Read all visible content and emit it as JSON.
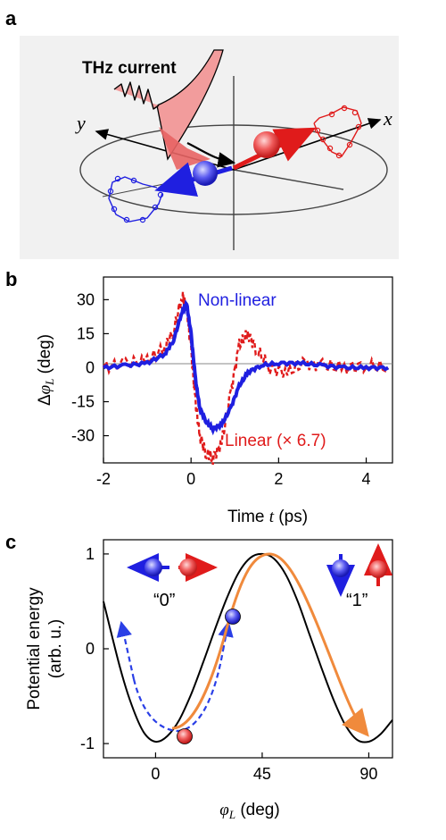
{
  "panel_a": {
    "label": "a",
    "title": "THz current",
    "axis_x": "x",
    "axis_y": "y"
  },
  "panel_b": {
    "label": "b",
    "series_nonlinear": "Non-linear",
    "series_linear": "Linear (× 6.7)",
    "ylabel_prefix": "Δ",
    "ylabel_var": "φ",
    "ylabel_sub": "L",
    "ylabel_unit": " (deg)",
    "xlabel_prefix": "Time ",
    "xlabel_var": "t",
    "xlabel_unit": " (ps)",
    "colors": {
      "nonlinear": "#1f1fe0",
      "linear": "#e01b1b"
    }
  },
  "panel_c": {
    "label": "c",
    "ylabel_line1": "Potential energy",
    "ylabel_line2": "(arb. u.)",
    "xlabel_var": "φ",
    "xlabel_sub": "L",
    "xlabel_unit": " (deg)",
    "state0": "“0”",
    "state1": "“1”",
    "colors": {
      "curve": "#000000",
      "path_blue": "#2a3fe6",
      "path_orange": "#f08a3c"
    }
  },
  "chart_data": [
    {
      "type": "line",
      "panel": "b",
      "xlabel": "Time t (ps)",
      "ylabel": "Δφ_L (deg)",
      "xlim": [
        -2,
        4.6
      ],
      "ylim": [
        -42,
        40
      ],
      "xticks": [
        "-2",
        "0",
        "2",
        "4"
      ],
      "yticks": [
        "30",
        "15",
        "0",
        "-15",
        "-30"
      ],
      "series": [
        {
          "name": "Non-linear",
          "x": [
            -2,
            -1.5,
            -1,
            -0.6,
            -0.4,
            -0.2,
            -0.1,
            0,
            0.1,
            0.2,
            0.35,
            0.5,
            0.7,
            0.9,
            1.1,
            1.3,
            1.6,
            2,
            2.5,
            3,
            3.5,
            4,
            4.5
          ],
          "y": [
            0,
            1,
            2,
            6,
            12,
            25,
            28,
            15,
            -5,
            -18,
            -24,
            -27,
            -25,
            -18,
            -8,
            -2,
            1,
            2,
            2,
            1,
            0,
            0,
            0
          ]
        },
        {
          "name": "Linear (× 6.7)",
          "x": [
            -2,
            -1.5,
            -1,
            -0.6,
            -0.4,
            -0.2,
            -0.1,
            0,
            0.1,
            0.2,
            0.35,
            0.5,
            0.7,
            0.9,
            1.1,
            1.3,
            1.5,
            1.8,
            2.2,
            2.6,
            3,
            3.5,
            4,
            4.5
          ],
          "y": [
            0,
            2,
            3,
            9,
            16,
            32,
            26,
            8,
            -15,
            -30,
            -38,
            -40,
            -33,
            -12,
            10,
            15,
            8,
            0,
            -2,
            2,
            1,
            0,
            1,
            0
          ]
        }
      ]
    },
    {
      "type": "line",
      "panel": "c",
      "xlabel": "φ_L (deg)",
      "ylabel": "Potential energy (arb. u.)",
      "xlim": [
        -22,
        100
      ],
      "ylim": [
        -1.15,
        1.15
      ],
      "xticks": [
        "0",
        "45",
        "90"
      ],
      "yticks": [
        "1",
        "0",
        "-1"
      ],
      "series": [
        {
          "name": "",
          "x": [
            -22,
            -15,
            -10,
            -5,
            0,
            5,
            10,
            15,
            20,
            25,
            30,
            35,
            40,
            45,
            50,
            55,
            60,
            65,
            70,
            75,
            80,
            85,
            90,
            95,
            100
          ],
          "y": [
            0.5,
            -0.2,
            -0.6,
            -0.88,
            -0.98,
            -0.92,
            -0.75,
            -0.48,
            -0.15,
            0.2,
            0.53,
            0.8,
            0.96,
            1.0,
            0.95,
            0.78,
            0.5,
            0.15,
            -0.2,
            -0.53,
            -0.8,
            -0.96,
            -0.98,
            -0.9,
            -0.75
          ]
        }
      ]
    }
  ]
}
